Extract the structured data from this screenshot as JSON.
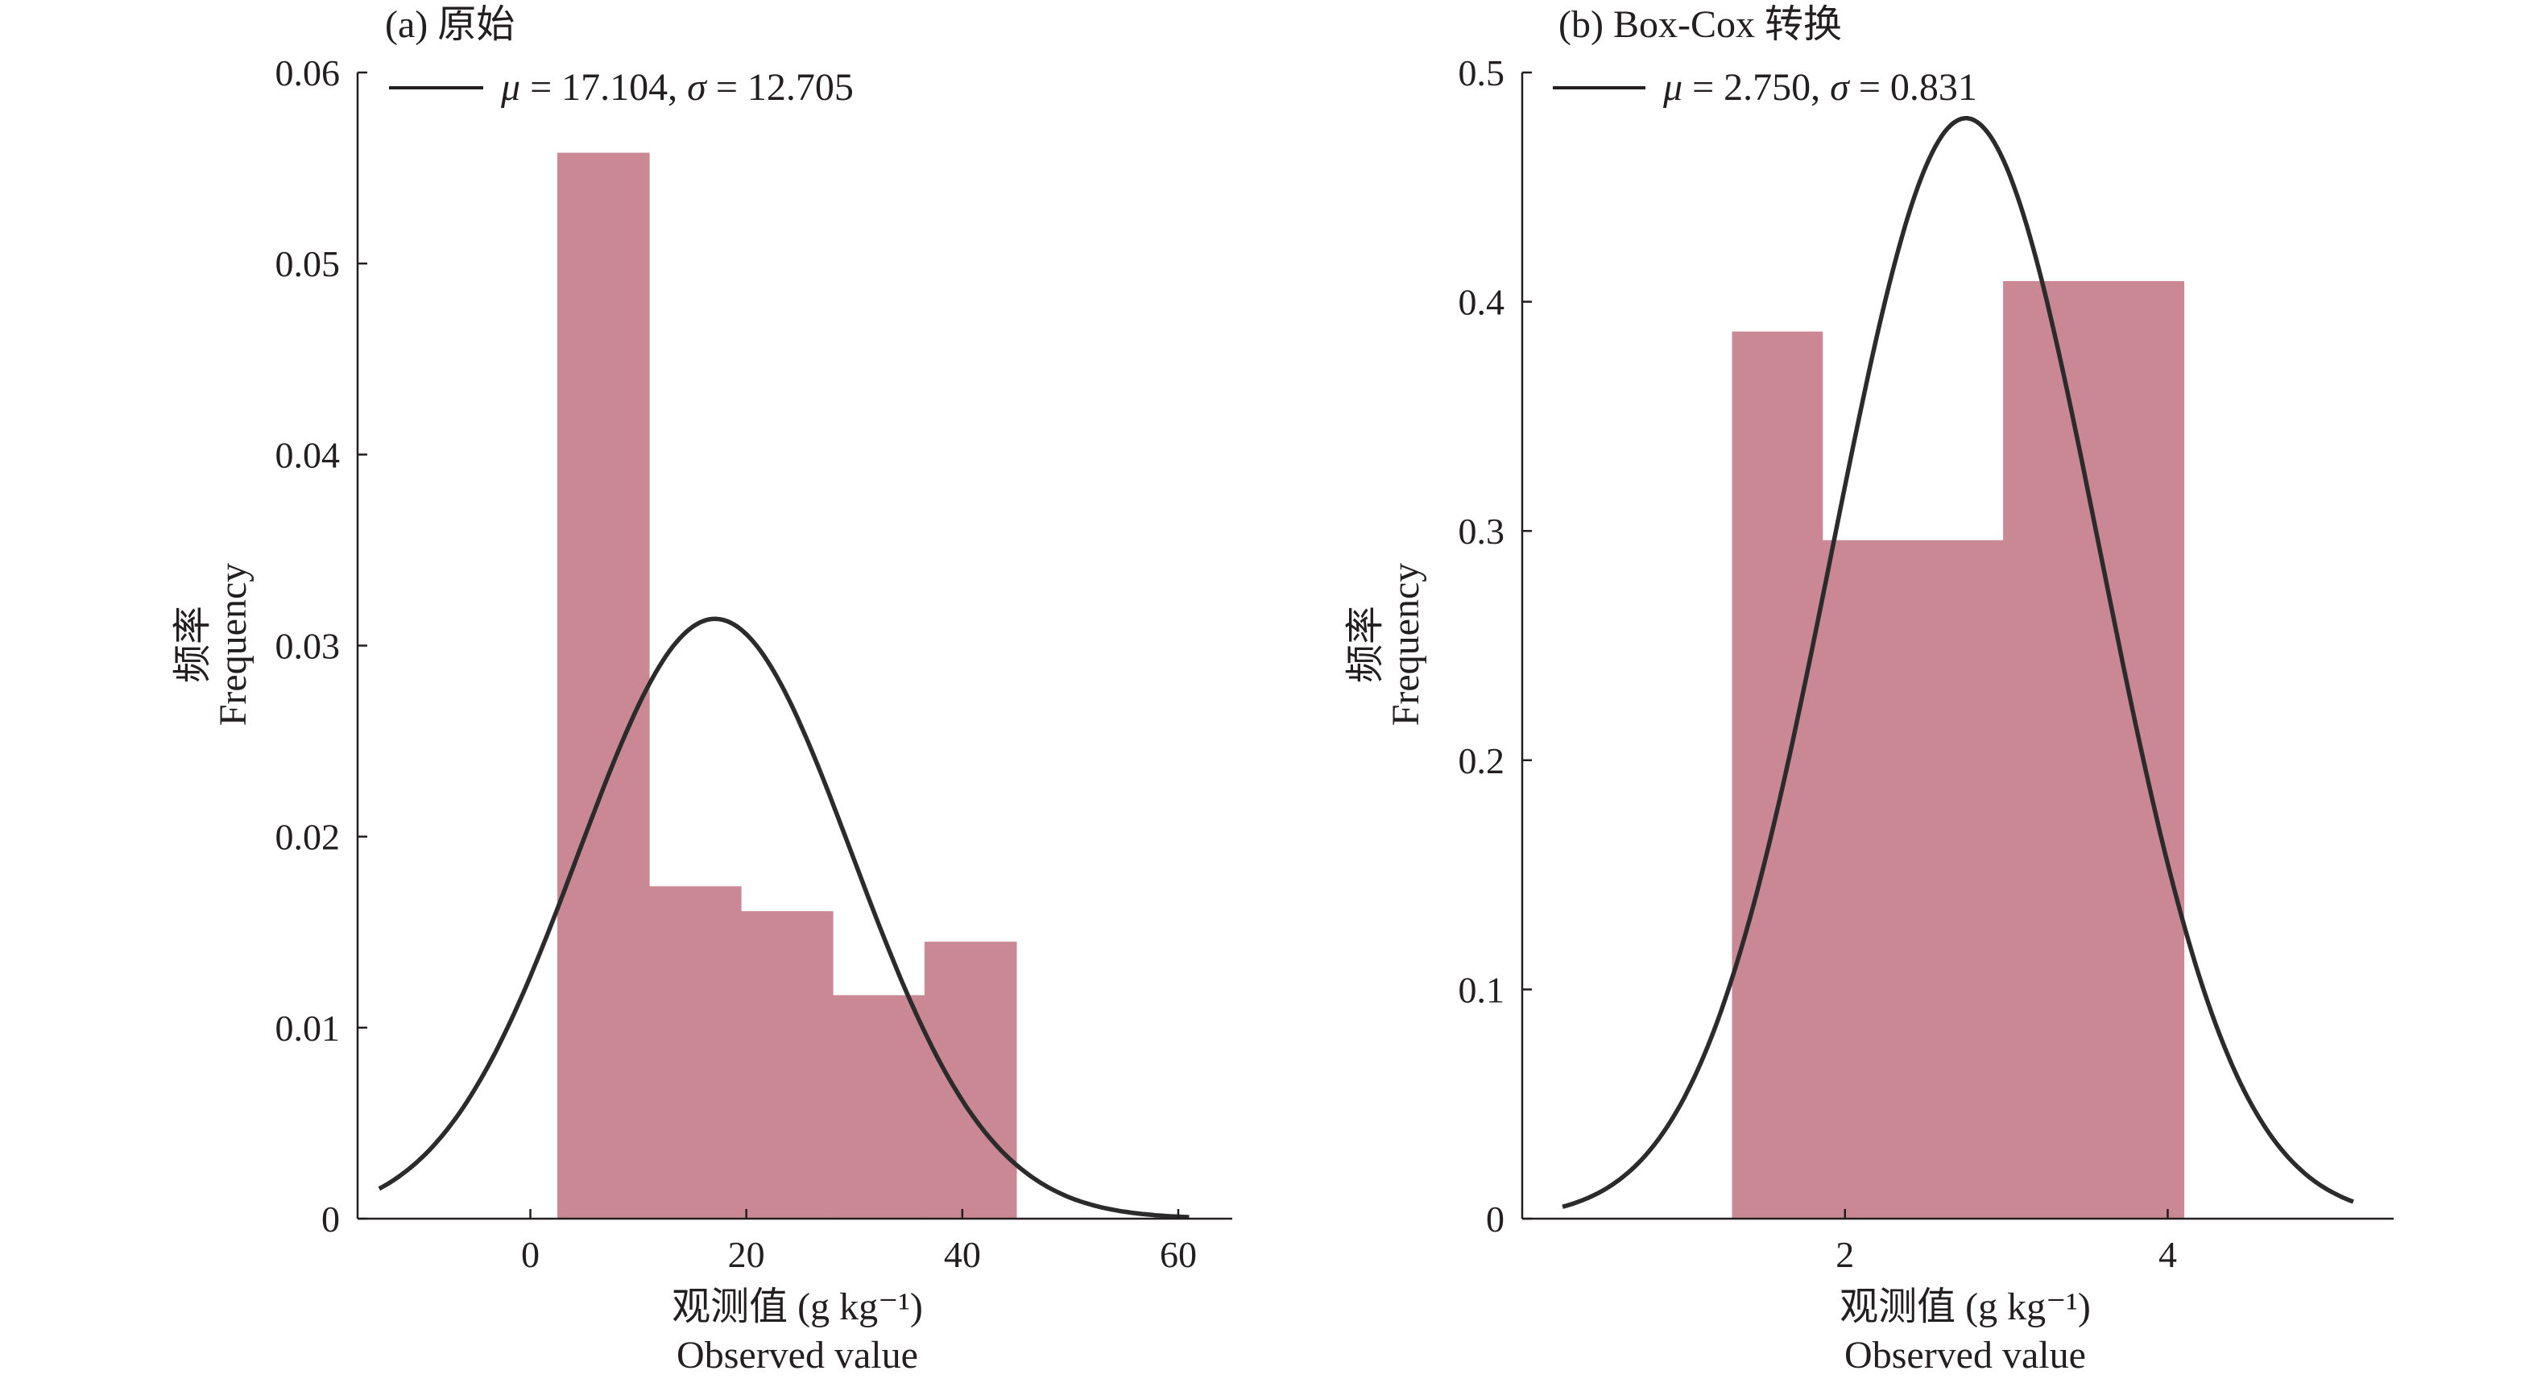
{
  "chart_data": [
    {
      "type": "bar",
      "title": "(a) 原始",
      "xlabel_cn": "观测值 (g kg⁻¹)",
      "xlabel_en": "Observed value",
      "ylabel_cn": "频率",
      "ylabel_en": "Frequency",
      "xlim": [
        -16,
        65
      ],
      "ylim": [
        0,
        0.06
      ],
      "xticks": [
        {
          "value": 0,
          "label": "0"
        },
        {
          "value": 20,
          "label": "20"
        },
        {
          "value": 40,
          "label": "40"
        },
        {
          "value": 60,
          "label": "60"
        }
      ],
      "yticks": [
        {
          "value": 0,
          "label": "0"
        },
        {
          "value": 0.01,
          "label": "0.01"
        },
        {
          "value": 0.02,
          "label": "0.02"
        },
        {
          "value": 0.03,
          "label": "0.03"
        },
        {
          "value": 0.04,
          "label": "0.04"
        },
        {
          "value": 0.05,
          "label": "0.05"
        },
        {
          "value": 0.06,
          "label": "0.06"
        }
      ],
      "bins": [
        {
          "x0": 2.5,
          "x1": 11.0,
          "value": 0.0558
        },
        {
          "x0": 11.0,
          "x1": 19.5,
          "value": 0.0174
        },
        {
          "x0": 19.5,
          "x1": 28.0,
          "value": 0.0161
        },
        {
          "x0": 28.0,
          "x1": 36.5,
          "value": 0.0117
        },
        {
          "x0": 36.5,
          "x1": 45.0,
          "value": 0.0145
        }
      ],
      "fit": {
        "mu": 17.104,
        "sigma": 12.705,
        "x_range": [
          -14,
          61
        ]
      },
      "legend": {
        "mu_symbol": "μ",
        "mu_text": " = 17.104, ",
        "sigma_symbol": "σ",
        "sigma_text": " = 12.705"
      },
      "grid": false,
      "legend_position": "top-left",
      "colors": {
        "bar": "#c98893",
        "curve": "#2b2b2b",
        "axis": "#231f20"
      }
    },
    {
      "type": "bar",
      "title": "(b) Box-Cox 转换",
      "xlabel_cn": "观测值 (g kg⁻¹)",
      "xlabel_en": "Observed value",
      "ylabel_cn": "频率",
      "ylabel_en": "Frequency",
      "xlim": [
        0.0,
        5.4
      ],
      "ylim": [
        0,
        0.5
      ],
      "xticks": [
        {
          "value": 2,
          "label": "2"
        },
        {
          "value": 4,
          "label": "4"
        }
      ],
      "yticks": [
        {
          "value": 0,
          "label": "0"
        },
        {
          "value": 0.1,
          "label": "0.1"
        },
        {
          "value": 0.2,
          "label": "0.2"
        },
        {
          "value": 0.3,
          "label": "0.3"
        },
        {
          "value": 0.4,
          "label": "0.4"
        },
        {
          "value": 0.5,
          "label": "0.5"
        }
      ],
      "bins": [
        {
          "x0": 1.3,
          "x1": 1.86,
          "value": 0.387
        },
        {
          "x0": 1.86,
          "x1": 2.98,
          "value": 0.296
        },
        {
          "x0": 2.98,
          "x1": 4.1,
          "value": 0.409
        }
      ],
      "fit": {
        "mu": 2.75,
        "sigma": 0.831,
        "x_range": [
          0.25,
          5.15
        ]
      },
      "legend": {
        "mu_symbol": "μ",
        "mu_text": " = 2.750, ",
        "sigma_symbol": "σ",
        "sigma_text": " = 0.831"
      },
      "grid": false,
      "legend_position": "top-left",
      "colors": {
        "bar": "#c98893",
        "curve": "#2b2b2b",
        "axis": "#231f20"
      }
    }
  ]
}
